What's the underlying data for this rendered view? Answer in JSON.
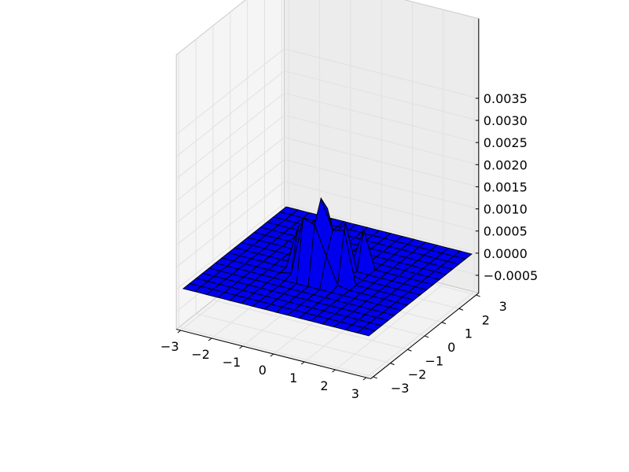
{
  "chart_data": {
    "type": "surface3d",
    "title": "",
    "xlabel": "",
    "ylabel": "",
    "zlabel": "",
    "xlim": [
      -3,
      3
    ],
    "ylim": [
      -3,
      3
    ],
    "zlim": [
      -0.0005,
      0.0035
    ],
    "x_ticks": [
      "−3",
      "−2",
      "−1",
      "0",
      "1",
      "2",
      "3"
    ],
    "y_ticks": [
      "−3",
      "−2",
      "−1",
      "0",
      "1",
      "2",
      "3"
    ],
    "z_ticks": [
      "−0.0005",
      "0.0000",
      "0.0005",
      "0.0010",
      "0.0015",
      "0.0020",
      "0.0025",
      "0.0030",
      "0.0035"
    ],
    "grid": true,
    "surface_color": "#0000ee",
    "edge_color": "#000000",
    "pane_color": "#f2f2f2",
    "peak_region": {
      "x_range": [
        -0.9,
        0.9
      ],
      "y_range": [
        -0.9,
        0.9
      ],
      "max_z": 0.0024
    }
  }
}
